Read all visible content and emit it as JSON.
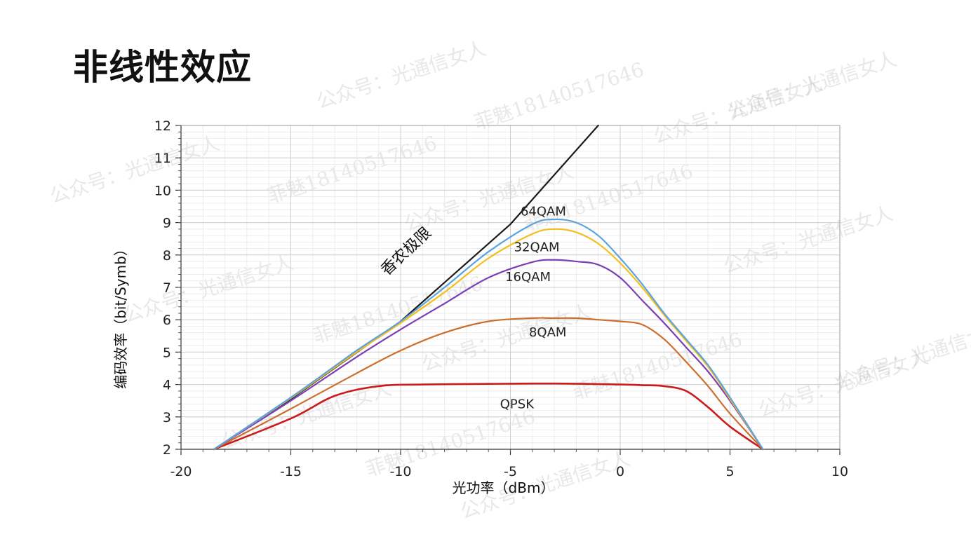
{
  "slide": {
    "title": "非线性效应"
  },
  "watermark": {
    "texts": [
      "公众号：光通信女人",
      "菲魅18140517646"
    ]
  },
  "chart_data": {
    "type": "line",
    "xlabel": "光功率（dBm）",
    "ylabel": "编码效率（bit/Symb）",
    "xlim": [
      -20,
      10
    ],
    "ylim": [
      2,
      12
    ],
    "xticks": [
      -20,
      -15,
      -10,
      -5,
      0,
      5,
      10
    ],
    "yticks": [
      2,
      3,
      4,
      5,
      6,
      7,
      8,
      9,
      10,
      11,
      12
    ],
    "grid": true,
    "series": [
      {
        "name": "香农极限",
        "color": "#1a1a1a",
        "x": [
          -18.5,
          -15,
          -10,
          -5,
          -1.0
        ],
        "y": [
          2.0,
          3.55,
          5.95,
          8.95,
          12.0
        ]
      },
      {
        "name": "64QAM",
        "color": "#5ba3dc",
        "x": [
          -18.5,
          -15,
          -12,
          -10,
          -8,
          -6,
          -4,
          -3,
          -2,
          -1,
          0,
          1,
          2,
          3,
          4,
          5,
          6.5
        ],
        "y": [
          2.0,
          3.6,
          5.05,
          5.95,
          7.0,
          8.1,
          8.95,
          9.1,
          9.0,
          8.6,
          7.9,
          7.1,
          6.2,
          5.4,
          4.6,
          3.6,
          2.0
        ]
      },
      {
        "name": "32QAM",
        "color": "#f5bf1b",
        "x": [
          -18.5,
          -15,
          -12,
          -10,
          -8,
          -6,
          -4,
          -3,
          -2,
          -1,
          0,
          1,
          2,
          3,
          4,
          5,
          6.5
        ],
        "y": [
          2.0,
          3.58,
          5.0,
          5.9,
          6.85,
          7.9,
          8.65,
          8.8,
          8.7,
          8.35,
          7.75,
          7.0,
          6.15,
          5.35,
          4.55,
          3.55,
          2.0
        ]
      },
      {
        "name": "16QAM",
        "color": "#7a3fb5",
        "x": [
          -18.5,
          -15,
          -12,
          -10,
          -8,
          -6,
          -4,
          -3,
          -2,
          -1,
          0,
          1,
          2,
          3,
          4,
          5,
          6.5
        ],
        "y": [
          2.0,
          3.5,
          4.85,
          5.7,
          6.5,
          7.3,
          7.78,
          7.85,
          7.8,
          7.7,
          7.3,
          6.6,
          5.9,
          5.15,
          4.4,
          3.5,
          2.0
        ]
      },
      {
        "name": "8QAM",
        "color": "#cc6e2c",
        "x": [
          -18.5,
          -15,
          -12,
          -10,
          -8,
          -6,
          -4,
          -3,
          -2,
          -1,
          0,
          1,
          2,
          3,
          4,
          5,
          6.5
        ],
        "y": [
          2.0,
          3.25,
          4.35,
          5.05,
          5.6,
          5.95,
          6.05,
          6.05,
          6.05,
          6.0,
          5.95,
          5.85,
          5.4,
          4.7,
          3.95,
          3.1,
          2.0
        ]
      },
      {
        "name": "QPSK",
        "color": "#cc1b1b",
        "x": [
          -18.5,
          -15,
          -13,
          -11,
          -9,
          -6,
          -3,
          0,
          1,
          2,
          3,
          4,
          5,
          6.5
        ],
        "y": [
          2.0,
          2.95,
          3.65,
          3.95,
          4.0,
          4.02,
          4.03,
          4.0,
          3.98,
          3.95,
          3.8,
          3.3,
          2.7,
          2.0
        ]
      }
    ]
  }
}
